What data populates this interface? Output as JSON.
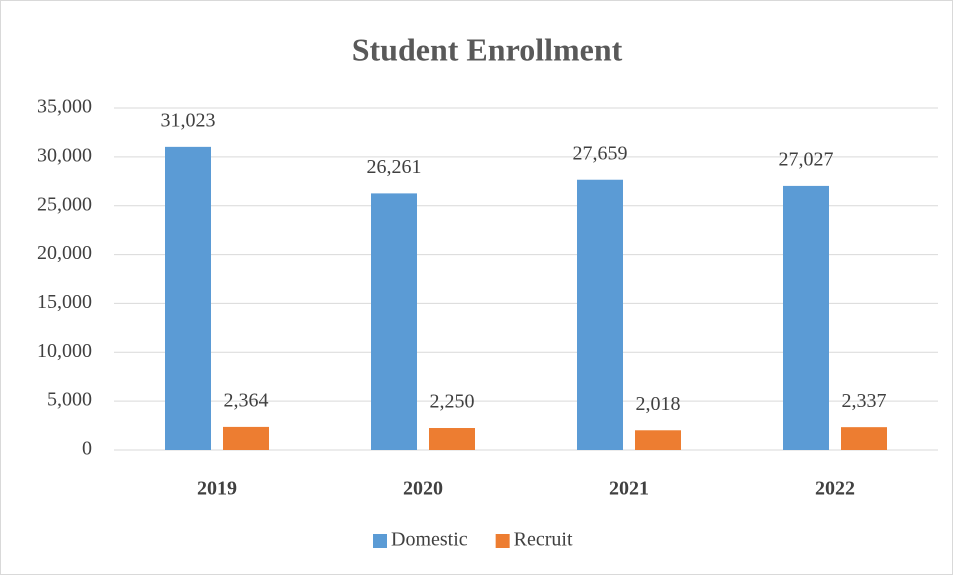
{
  "chart_data": {
    "type": "bar",
    "title": "Student Enrollment",
    "categories": [
      "2019",
      "2020",
      "2021",
      "2022"
    ],
    "series": [
      {
        "name": "Domestic",
        "color": "#5b9bd5",
        "values": [
          31023,
          26261,
          27659,
          27027
        ],
        "value_labels": [
          "31,023",
          "26,261",
          "27,659",
          "27,027"
        ]
      },
      {
        "name": "Recruit",
        "color": "#ed7d31",
        "values": [
          2364,
          2250,
          2018,
          2337
        ],
        "value_labels": [
          "2,364",
          "2,250",
          "2,018",
          "2,337"
        ]
      }
    ],
    "ylim": [
      0,
      35000
    ],
    "yticks": [
      0,
      {
        "value": 5000,
        "label": "5,000"
      },
      {
        "value": 10000,
        "label": "10,000"
      },
      {
        "value": 15000,
        "label": "15,000"
      },
      {
        "value": 20000,
        "label": "20,000"
      },
      {
        "value": 25000,
        "label": "25,000"
      },
      {
        "value": 30000,
        "label": "30,000"
      },
      {
        "value": 35000,
        "label": "35,000"
      }
    ],
    "grid": true,
    "legend": "bottom"
  }
}
